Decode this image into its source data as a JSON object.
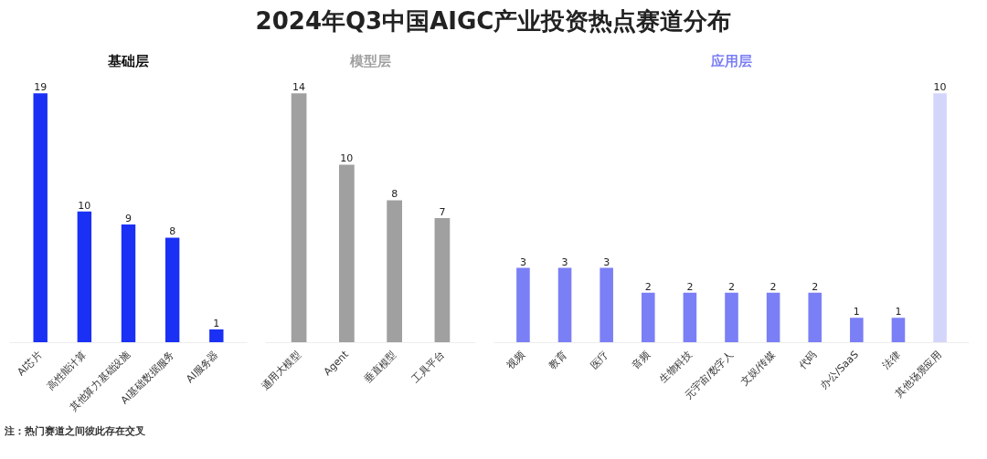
{
  "chart_data": [
    {
      "type": "bar",
      "title": "基础层",
      "annotations": [
        "2024年Q3中国AIGC产业投资热点赛道分布",
        "注：热门赛道之间彼此存在交叉"
      ],
      "categories": [
        "AI芯片",
        "高性能计算",
        "其他算力基础设施",
        "AI基础数据服务",
        "AI服务器"
      ],
      "values": [
        19,
        10,
        9,
        8,
        1
      ],
      "color": "#1a30f5",
      "data_labels": true
    },
    {
      "type": "bar",
      "title": "模型层",
      "categories": [
        "通用大模型",
        "Agent",
        "垂直模型",
        "工具平台"
      ],
      "values": [
        14,
        10,
        8,
        7
      ],
      "color": "#a0a0a0",
      "data_labels": true
    },
    {
      "type": "bar",
      "title": "应用层",
      "categories": [
        "视频",
        "教育",
        "医疗",
        "音频",
        "生物科技",
        "元宇宙/数字人",
        "文娱/传媒",
        "代码",
        "办公/SaaS",
        "法律",
        "其他场景应用"
      ],
      "values": [
        3,
        3,
        3,
        2,
        2,
        2,
        2,
        2,
        1,
        1,
        10
      ],
      "colors": [
        "#7b7ff5",
        "#7b7ff5",
        "#7b7ff5",
        "#7b7ff5",
        "#7b7ff5",
        "#7b7ff5",
        "#7b7ff5",
        "#7b7ff5",
        "#7b7ff5",
        "#7b7ff5",
        "#d4d5fa"
      ],
      "data_labels": true
    }
  ]
}
